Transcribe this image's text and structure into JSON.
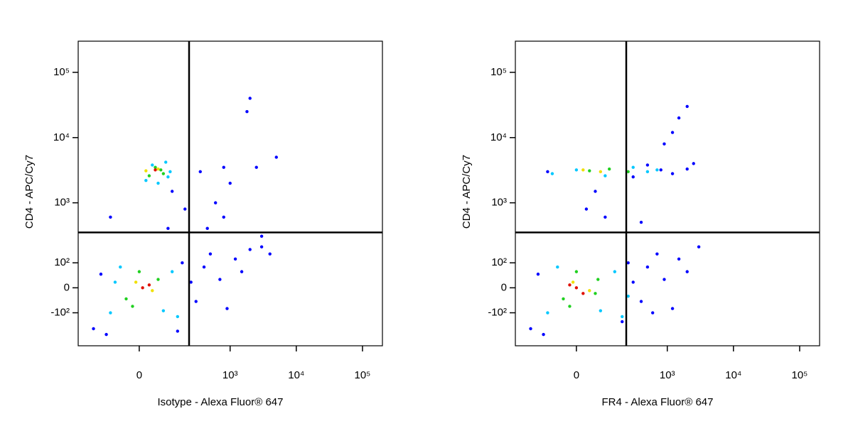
{
  "chart_data": [
    {
      "type": "scatter",
      "xlabel": "Isotype - Alexa Fluor® 647",
      "ylabel": "CD4 - APC/Cy7",
      "xscale": "biexponential",
      "yscale": "biexponential",
      "xlim": [
        -350,
        200000
      ],
      "ylim": [
        -380,
        300000
      ],
      "xticks": [
        0,
        {
          "value": 1000,
          "label": "10³"
        },
        {
          "value": 10000,
          "label": "10⁴"
        },
        {
          "value": 100000,
          "label": "10⁵"
        }
      ],
      "yticks": [
        {
          "value": -100,
          "label": "-10²"
        },
        0,
        {
          "value": 100,
          "label": "10²"
        },
        {
          "value": 1000,
          "label": "10³"
        },
        {
          "value": 10000,
          "label": "10⁴"
        },
        {
          "value": 100000,
          "label": "10⁵"
        }
      ],
      "gates": {
        "x": 233,
        "y": 345
      },
      "series": [
        {
          "color": "#0000ff",
          "x": [
            -200,
            -150,
            -120,
            150,
            180,
            250,
            300,
            400,
            500,
            700,
            900,
            1200,
            1500,
            2000,
            3000,
            4000,
            600,
            800,
            1000,
            2500,
            -100,
            200,
            350,
            450,
            1800,
            5000,
            2000,
            800,
            3000,
            100,
            120
          ],
          "y": [
            -200,
            50,
            -250,
            -220,
            100,
            20,
            -50,
            80,
            150,
            30,
            -80,
            120,
            60,
            180,
            200,
            150,
            1000,
            600,
            2000,
            3500,
            600,
            800,
            3000,
            400,
            25000,
            5000,
            40000,
            3500,
            300,
            400,
            1500
          ]
        },
        {
          "color": "#00c8ff",
          "x": [
            -100,
            -60,
            80,
            120,
            150,
            -80,
            100,
            40,
            20,
            90,
            60,
            110
          ],
          "y": [
            -100,
            80,
            -90,
            60,
            -120,
            20,
            2500,
            3800,
            2200,
            4200,
            2000,
            3000
          ]
        },
        {
          "color": "#20d020",
          "x": [
            -40,
            0,
            60,
            -20,
            80,
            50,
            70,
            30
          ],
          "y": [
            -40,
            60,
            30,
            -70,
            2800,
            3500,
            3200,
            2600
          ]
        },
        {
          "color": "#f0e000",
          "x": [
            -10,
            40,
            20,
            60
          ],
          "y": [
            20,
            -10,
            3100,
            3300
          ]
        },
        {
          "color": "#e01000",
          "x": [
            10,
            30,
            50
          ],
          "y": [
            0,
            10,
            3200
          ]
        }
      ]
    },
    {
      "type": "scatter",
      "xlabel": "FR4 - Alexa Fluor® 647",
      "ylabel": "CD4 - APC/Cy7",
      "xscale": "biexponential",
      "yscale": "biexponential",
      "xlim": [
        -350,
        200000
      ],
      "ylim": [
        -380,
        300000
      ],
      "xticks": [
        0,
        {
          "value": 1000,
          "label": "10³"
        },
        {
          "value": 10000,
          "label": "10⁴"
        },
        {
          "value": 100000,
          "label": "10⁵"
        }
      ],
      "yticks": [
        {
          "value": -100,
          "label": "-10²"
        },
        0,
        {
          "value": 100,
          "label": "10²"
        },
        {
          "value": 1000,
          "label": "10³"
        },
        {
          "value": 10000,
          "label": "10⁴"
        },
        {
          "value": 100000,
          "label": "10⁵"
        }
      ],
      "gates": {
        "x": 233,
        "y": 345
      },
      "series": [
        {
          "color": "#0000ff",
          "x": [
            -200,
            -150,
            -120,
            200,
            250,
            300,
            400,
            500,
            700,
            900,
            1200,
            1500,
            2000,
            3000,
            -100,
            300,
            500,
            800,
            1200,
            2000,
            2500,
            1500,
            900,
            400,
            30,
            60,
            100,
            2000,
            1200,
            600
          ],
          "y": [
            -200,
            50,
            -250,
            -150,
            100,
            20,
            -50,
            80,
            150,
            30,
            -80,
            120,
            60,
            200,
            3000,
            2500,
            3800,
            3200,
            2800,
            3300,
            4000,
            20000,
            8000,
            500,
            800,
            1500,
            600,
            30000,
            12000,
            -100
          ]
        },
        {
          "color": "#00c8ff",
          "x": [
            -100,
            -60,
            80,
            150,
            200,
            -80,
            0,
            100,
            300,
            500,
            700,
            250
          ],
          "y": [
            -100,
            80,
            -90,
            60,
            -120,
            2800,
            3200,
            2600,
            3500,
            3000,
            3200,
            -30
          ]
        },
        {
          "color": "#20d020",
          "x": [
            -40,
            0,
            70,
            -20,
            40,
            120,
            250,
            60
          ],
          "y": [
            -40,
            60,
            30,
            -70,
            3100,
            3300,
            3000,
            -20
          ]
        },
        {
          "color": "#f0e000",
          "x": [
            -10,
            40,
            20,
            80
          ],
          "y": [
            20,
            -10,
            3200,
            3000
          ]
        },
        {
          "color": "#e01000",
          "x": [
            0,
            20,
            -20
          ],
          "y": [
            0,
            -20,
            10
          ]
        }
      ]
    }
  ]
}
